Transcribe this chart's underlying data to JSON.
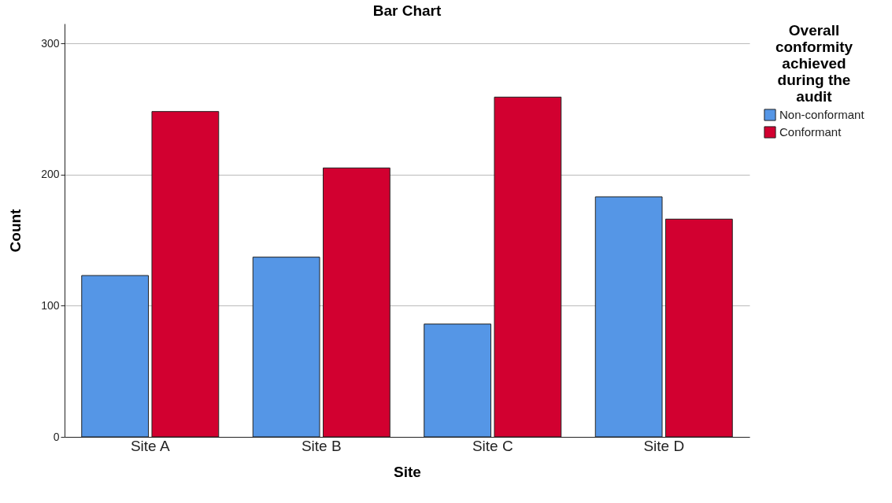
{
  "chart_data": {
    "type": "bar",
    "title": "Bar Chart",
    "xlabel": "Site",
    "ylabel": "Count",
    "legend_title": "Overall conformity achieved during the audit",
    "categories": [
      "Site A",
      "Site B",
      "Site C",
      "Site D"
    ],
    "series": [
      {
        "name": "Non-conformant",
        "color": "#5596e6",
        "values": [
          123,
          137,
          86,
          183
        ]
      },
      {
        "name": "Conformant",
        "color": "#d20030",
        "values": [
          248,
          205,
          259,
          166
        ]
      }
    ],
    "ylim": [
      0,
      315
    ],
    "yticks": [
      0,
      100,
      200,
      300
    ],
    "grid": "y",
    "legend": "top right"
  }
}
